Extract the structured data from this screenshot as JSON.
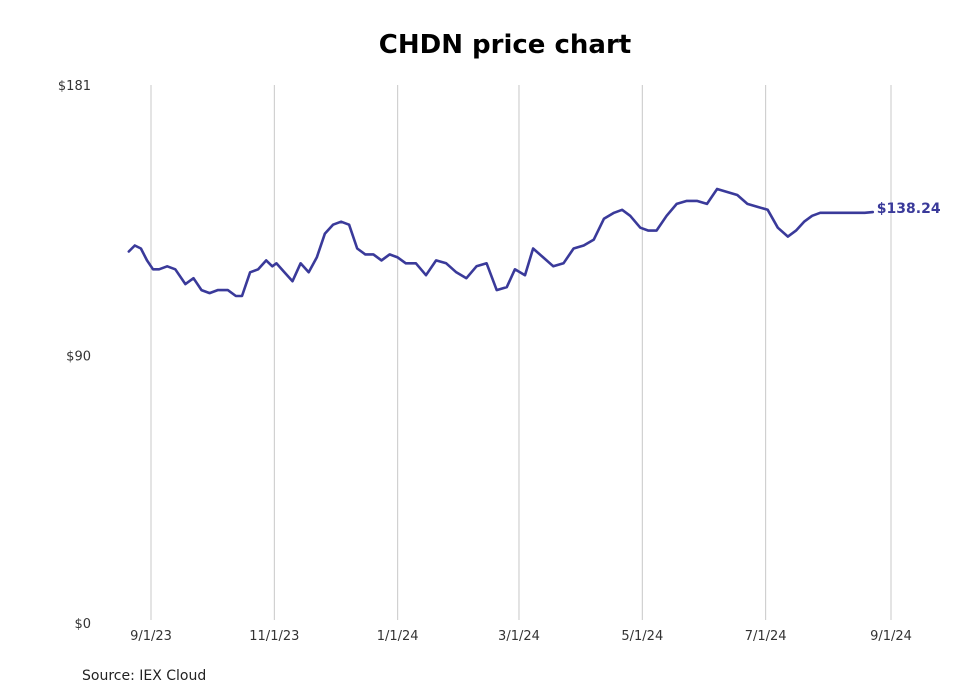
{
  "chart_data": {
    "type": "line",
    "title": "CHDN price chart",
    "source": "Source: IEX Cloud",
    "xlabel": "",
    "ylabel": "",
    "ylim": [
      0,
      181
    ],
    "y_ticks": [
      0,
      90,
      181
    ],
    "y_tick_labels": [
      "$0",
      "$90",
      "$181"
    ],
    "x_ticks": [
      "2023-09-01",
      "2023-11-01",
      "2024-01-01",
      "2024-03-01",
      "2024-05-01",
      "2024-07-01",
      "2024-09-01"
    ],
    "x_tick_labels": [
      "9/1/23",
      "11/1/23",
      "1/1/24",
      "3/1/24",
      "5/1/24",
      "7/1/24",
      "9/1/24"
    ],
    "grid": "vertical",
    "line_color": "#3a3a9a",
    "end_label": "$138.24",
    "series": [
      {
        "x": [
          "2023-08-21",
          "2023-08-24",
          "2023-08-27",
          "2023-08-30",
          "2023-09-02",
          "2023-09-05",
          "2023-09-09",
          "2023-09-13",
          "2023-09-18",
          "2023-09-22",
          "2023-09-26",
          "2023-09-30",
          "2023-10-04",
          "2023-10-09",
          "2023-10-13",
          "2023-10-16",
          "2023-10-20",
          "2023-10-24",
          "2023-10-28",
          "2023-10-31",
          "2023-11-02",
          "2023-11-06",
          "2023-11-10",
          "2023-11-14",
          "2023-11-18",
          "2023-11-22",
          "2023-11-26",
          "2023-11-30",
          "2023-12-04",
          "2023-12-08",
          "2023-12-12",
          "2023-12-16",
          "2023-12-20",
          "2023-12-24",
          "2023-12-28",
          "2024-01-01",
          "2024-01-05",
          "2024-01-10",
          "2024-01-15",
          "2024-01-20",
          "2024-01-25",
          "2024-01-30",
          "2024-02-04",
          "2024-02-09",
          "2024-02-14",
          "2024-02-19",
          "2024-02-24",
          "2024-02-28",
          "2024-03-04",
          "2024-03-08",
          "2024-03-13",
          "2024-03-18",
          "2024-03-23",
          "2024-03-28",
          "2024-04-02",
          "2024-04-07",
          "2024-04-12",
          "2024-04-17",
          "2024-04-21",
          "2024-04-25",
          "2024-04-30",
          "2024-05-04",
          "2024-05-08",
          "2024-05-13",
          "2024-05-18",
          "2024-05-23",
          "2024-05-28",
          "2024-06-02",
          "2024-06-07",
          "2024-06-12",
          "2024-06-17",
          "2024-06-22",
          "2024-06-27",
          "2024-07-02",
          "2024-07-07",
          "2024-07-12",
          "2024-07-16",
          "2024-07-20",
          "2024-07-24",
          "2024-07-28",
          "2024-07-31",
          "2024-08-03",
          "2024-08-06",
          "2024-08-10",
          "2024-08-15",
          "2024-08-19",
          "2024-08-23"
        ],
        "values": [
          125,
          127,
          126,
          122,
          119,
          119,
          120,
          119,
          114,
          116,
          112,
          111,
          112,
          112,
          110,
          110,
          118,
          119,
          122,
          120,
          121,
          118,
          115,
          121,
          118,
          123,
          131,
          134,
          135,
          134,
          126,
          124,
          124,
          122,
          124,
          123,
          121,
          121,
          117,
          122,
          121,
          118,
          116,
          120,
          121,
          112,
          113,
          119,
          117,
          126,
          123,
          120,
          121,
          126,
          127,
          129,
          136,
          138,
          139,
          137,
          133,
          132,
          132,
          137,
          141,
          142,
          142,
          141,
          146,
          145,
          144,
          141,
          140,
          139,
          133,
          130,
          132,
          135,
          137,
          138,
          138,
          138,
          138,
          138,
          138,
          138,
          138.24
        ]
      }
    ]
  }
}
